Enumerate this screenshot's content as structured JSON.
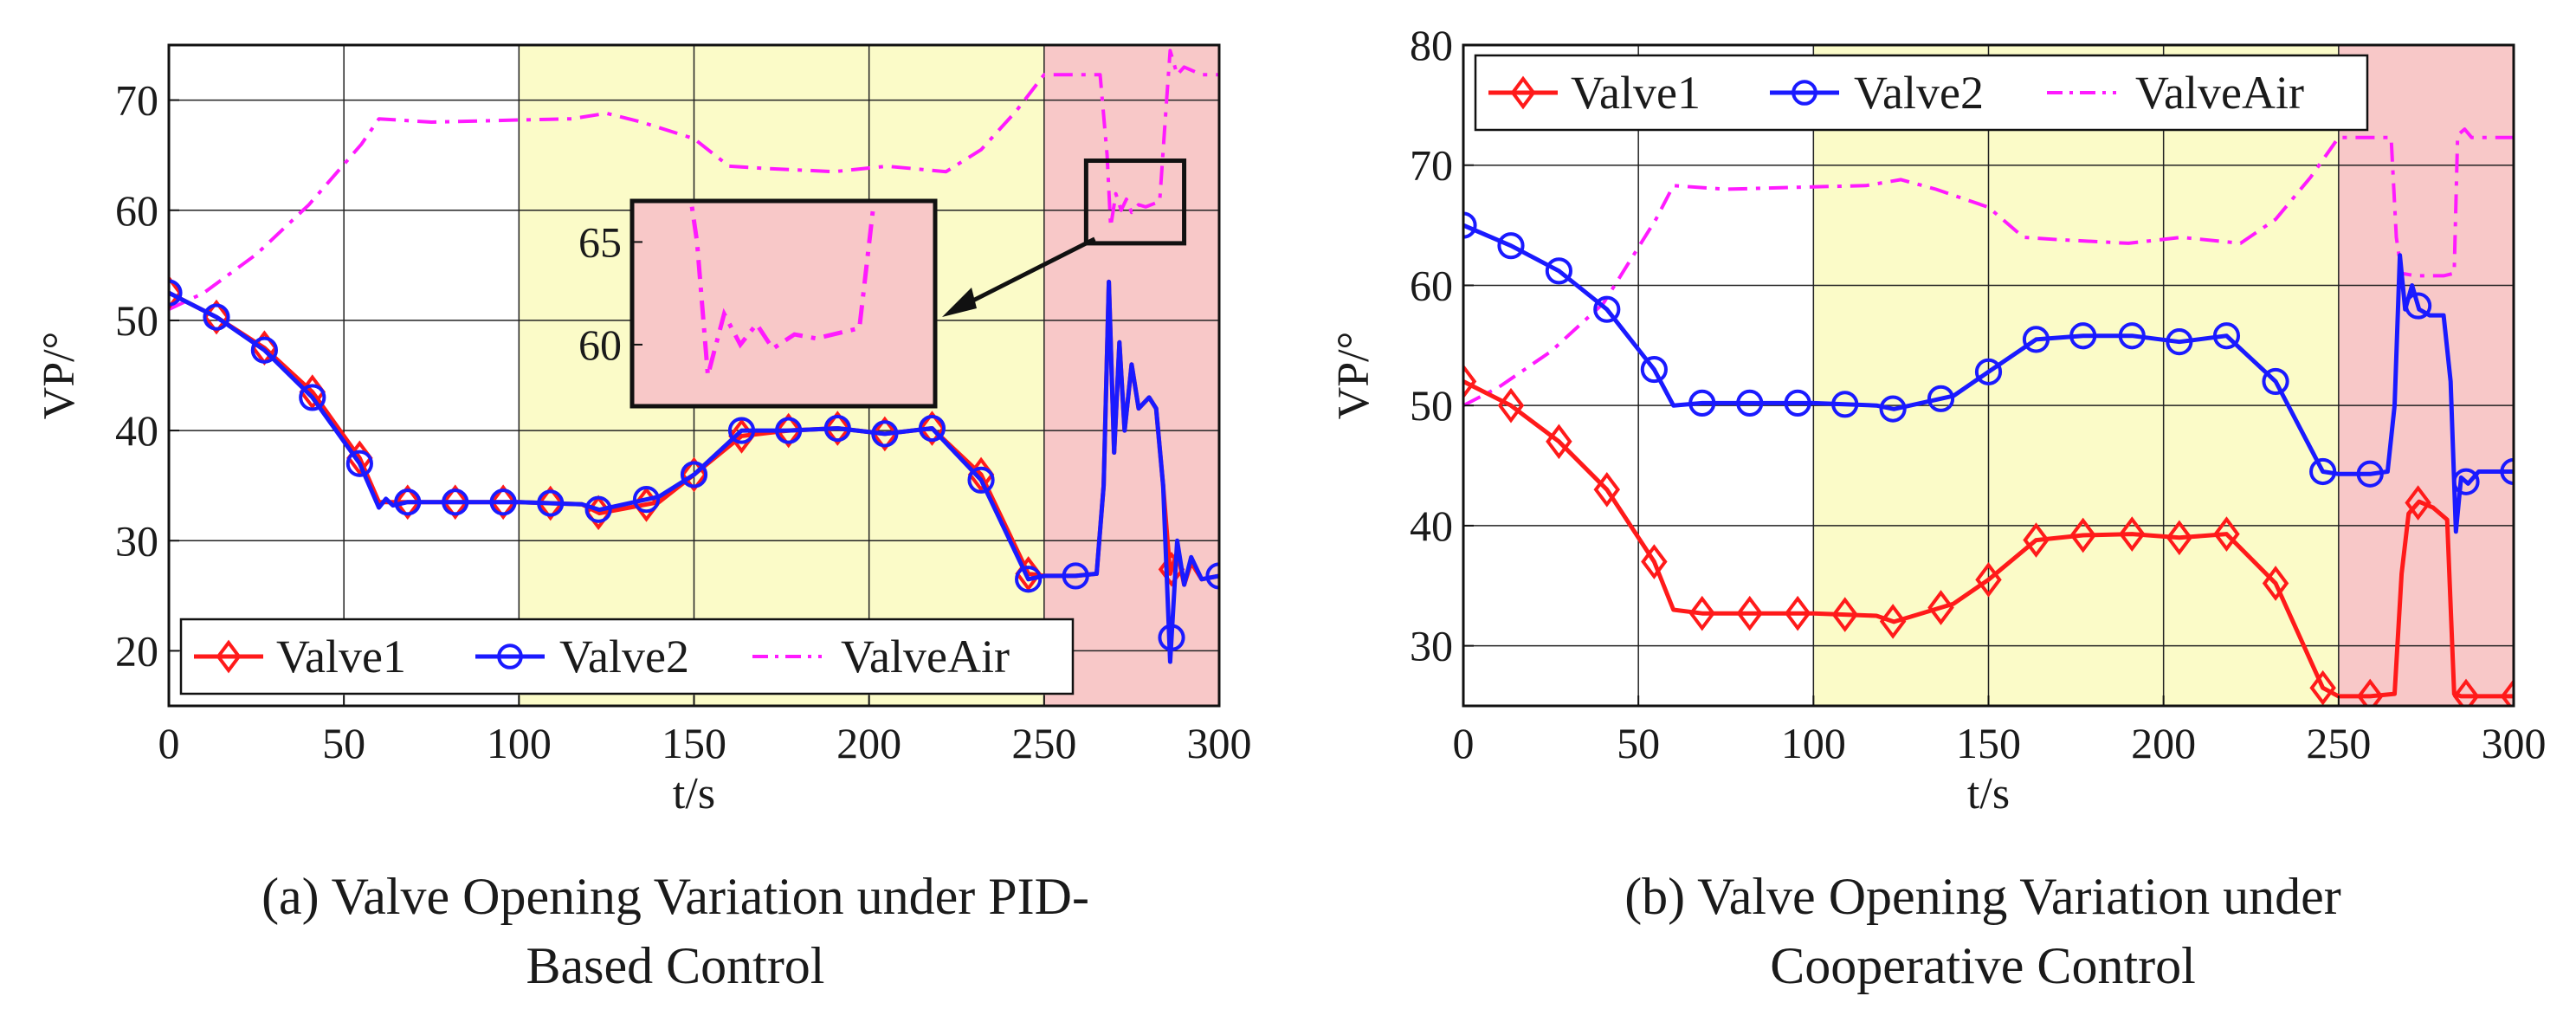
{
  "figure": {
    "caption_a_line1": "(a) Valve Opening Variation under PID-",
    "caption_a_line2": "Based Control",
    "caption_b_line1": "(b) Valve Opening Variation under",
    "caption_b_line2": "Cooperative Control"
  },
  "colors": {
    "valve1": "#ff1a1a",
    "valve2": "#1a1aff",
    "valveair": "#ff1aff",
    "band_green": "#ffffff",
    "band_yellow": "#fbfbc8",
    "band_red": "#f8c8c8"
  },
  "chart_data": [
    {
      "type": "line",
      "title": "",
      "xlabel": "t/s",
      "ylabel": "VP/°",
      "xlim": [
        0,
        300
      ],
      "ylim": [
        15,
        75
      ],
      "xticks": [
        "0",
        "50",
        "100",
        "150",
        "200",
        "250",
        "300"
      ],
      "yticks": [
        "20",
        "30",
        "40",
        "50",
        "60",
        "70"
      ],
      "bands": [
        {
          "from": 0,
          "to": 100,
          "color": "band_green"
        },
        {
          "from": 100,
          "to": 250,
          "color": "band_yellow"
        },
        {
          "from": 250,
          "to": 300,
          "color": "band_red"
        }
      ],
      "legend": {
        "position": "bottom-left",
        "entries": [
          "Valve1",
          "Valve2",
          "ValveAir"
        ]
      },
      "series": [
        {
          "name": "Valve1",
          "color": "valve1",
          "marker": "diamond",
          "x": [
            0,
            13.6,
            27.3,
            41,
            54.5,
            60,
            68.2,
            75,
            100,
            118,
            123,
            140,
            150,
            163.6,
            177,
            191,
            204.5,
            218,
            232,
            245.5,
            250,
            259,
            265,
            267,
            268.5,
            270,
            271.5,
            273,
            275,
            277,
            280,
            282,
            284,
            286,
            288,
            290,
            292,
            295,
            300
          ],
          "y": [
            52.5,
            50.3,
            47.5,
            43.5,
            37.5,
            33.5,
            33.5,
            33.5,
            33.5,
            33.3,
            32.5,
            33.5,
            36,
            39.5,
            40,
            40.2,
            39.7,
            40.2,
            36,
            27,
            26.8,
            26.8,
            27,
            35,
            53.5,
            38,
            48,
            40,
            46,
            42,
            43,
            42,
            35,
            27,
            29,
            26,
            28,
            26.5,
            26.8
          ],
          "markers_x": [
            0,
            13.6,
            27.3,
            41,
            54.5,
            68.2,
            81.8,
            95.5,
            109,
            122.7,
            136.4,
            150,
            163.6,
            177,
            191,
            204.5,
            218,
            232,
            245.5,
            286.4
          ]
        },
        {
          "name": "Valve2",
          "color": "valve2",
          "marker": "circle",
          "x": [
            0,
            13.6,
            27.3,
            41,
            54.5,
            60,
            62,
            64,
            68.2,
            100,
            118,
            123,
            140,
            150,
            163.6,
            177,
            191,
            204.5,
            218,
            232,
            245.5,
            250,
            259,
            265,
            267,
            268.5,
            270,
            271.5,
            273,
            275,
            277,
            280,
            282,
            284,
            286,
            288,
            290,
            292,
            295,
            300
          ],
          "y": [
            52.5,
            50.3,
            47.3,
            43,
            37,
            33,
            33.8,
            33.2,
            33.5,
            33.5,
            33.3,
            32.8,
            34,
            36,
            40,
            40,
            40.2,
            39.7,
            40.2,
            35.5,
            26.5,
            26.8,
            26.8,
            27,
            35,
            53.5,
            38,
            48,
            40,
            46,
            42,
            43,
            42,
            35,
            19,
            30,
            26,
            28.5,
            26.5,
            26.8
          ],
          "markers_x": [
            0,
            13.6,
            27.3,
            41,
            54.5,
            68.2,
            81.8,
            95.5,
            109,
            122.7,
            136.4,
            150,
            163.6,
            177,
            191,
            204.5,
            218,
            232,
            245.5,
            259,
            286.4,
            300
          ]
        },
        {
          "name": "ValveAir",
          "color": "valveair",
          "marker": "none",
          "x": [
            0,
            10,
            25,
            40,
            55,
            60,
            75,
            100,
            115,
            125,
            135,
            150,
            160,
            170,
            190,
            205,
            222,
            232,
            242,
            250,
            262,
            266,
            268,
            269,
            270.5,
            272,
            273.5,
            275,
            277,
            279,
            283,
            285,
            286,
            288,
            290,
            295,
            300
          ],
          "y": [
            51,
            52.5,
            56,
            60.5,
            66,
            68.3,
            68,
            68.2,
            68.3,
            68.8,
            68,
            66.5,
            64,
            63.8,
            63.5,
            64,
            63.5,
            65.5,
            69,
            72.3,
            72.3,
            72.3,
            65,
            58.5,
            61.5,
            60,
            61,
            59.8,
            60.5,
            60.3,
            60.8,
            70,
            74.5,
            72.3,
            73,
            72.3,
            72.3
          ]
        }
      ],
      "inset": {
        "ylim": [
          57,
          67
        ],
        "yticks": [
          "60",
          "65"
        ],
        "source_x_range": [
          262,
          290
        ],
        "source_y_range": [
          57,
          64.5
        ]
      }
    },
    {
      "type": "line",
      "title": "",
      "xlabel": "t/s",
      "ylabel": "VP/°",
      "xlim": [
        0,
        300
      ],
      "ylim": [
        25,
        80
      ],
      "xticks": [
        "0",
        "50",
        "100",
        "150",
        "200",
        "250",
        "300"
      ],
      "yticks": [
        "30",
        "40",
        "50",
        "60",
        "70",
        "80"
      ],
      "bands": [
        {
          "from": 0,
          "to": 100,
          "color": "band_green"
        },
        {
          "from": 100,
          "to": 250,
          "color": "band_yellow"
        },
        {
          "from": 250,
          "to": 300,
          "color": "band_red"
        }
      ],
      "legend": {
        "position": "top-left",
        "entries": [
          "Valve1",
          "Valve2",
          "ValveAir"
        ]
      },
      "series": [
        {
          "name": "Valve1",
          "color": "valve1",
          "marker": "diamond",
          "x": [
            0,
            13.6,
            27.3,
            41,
            54.5,
            60,
            68.2,
            100,
            118,
            123,
            140,
            150,
            163.6,
            177,
            191,
            204.5,
            218,
            232,
            245.5,
            250,
            259,
            266,
            268,
            270,
            273,
            277,
            281,
            283,
            285,
            287,
            300
          ],
          "y": [
            52,
            50,
            47,
            43,
            37,
            33,
            32.7,
            32.7,
            32.5,
            32,
            33.5,
            35.5,
            38.8,
            39.2,
            39.3,
            39,
            39.3,
            35.2,
            26.5,
            25.8,
            25.8,
            26,
            36,
            41,
            42,
            41.5,
            40.5,
            26,
            25.8,
            25.8,
            25.8
          ],
          "markers_x": [
            0,
            13.6,
            27.3,
            41,
            54.5,
            68.2,
            81.8,
            95.5,
            109,
            122.7,
            136.4,
            150,
            163.6,
            177,
            191,
            204.5,
            218,
            232,
            245.5,
            259,
            272.7,
            286.4,
            300
          ]
        },
        {
          "name": "Valve2",
          "color": "valve2",
          "marker": "circle",
          "x": [
            0,
            13.6,
            27.3,
            41,
            54.5,
            60,
            68.2,
            100,
            118,
            123,
            140,
            150,
            163.6,
            177,
            191,
            204.5,
            218,
            232,
            245.5,
            250,
            259,
            264,
            266,
            267.5,
            269,
            271,
            273,
            276,
            280,
            282,
            283.5,
            285,
            287,
            290,
            300
          ],
          "y": [
            65,
            63.3,
            61.2,
            58,
            53,
            50,
            50.2,
            50.2,
            50,
            49.7,
            50.8,
            52.8,
            55.5,
            55.8,
            55.8,
            55.3,
            55.8,
            52,
            44.5,
            44.3,
            44.3,
            44.5,
            50,
            62.5,
            58,
            60,
            58,
            57.5,
            57.5,
            52,
            39.5,
            44,
            43.5,
            44.5,
            44.5
          ],
          "markers_x": [
            0,
            13.6,
            27.3,
            41,
            54.5,
            68.2,
            81.8,
            95.5,
            109,
            122.7,
            136.4,
            150,
            163.6,
            177,
            191,
            204.5,
            218,
            232,
            245.5,
            259,
            272.7,
            286.4,
            300
          ]
        },
        {
          "name": "ValveAir",
          "color": "valveair",
          "marker": "none",
          "x": [
            0,
            10,
            25,
            40,
            55,
            60,
            75,
            100,
            115,
            125,
            135,
            150,
            160,
            170,
            190,
            205,
            222,
            232,
            242,
            250,
            262,
            265,
            266.5,
            268,
            272,
            280,
            283,
            284,
            286,
            288,
            300
          ],
          "y": [
            50,
            51.5,
            54.5,
            58.5,
            65.5,
            68.3,
            68,
            68.2,
            68.3,
            68.8,
            68,
            66.5,
            64,
            63.8,
            63.5,
            64,
            63.5,
            65.5,
            69,
            72.3,
            72.3,
            72.3,
            64,
            61,
            60.8,
            60.8,
            61,
            72.5,
            73,
            72.3,
            72.3
          ]
        }
      ]
    }
  ]
}
